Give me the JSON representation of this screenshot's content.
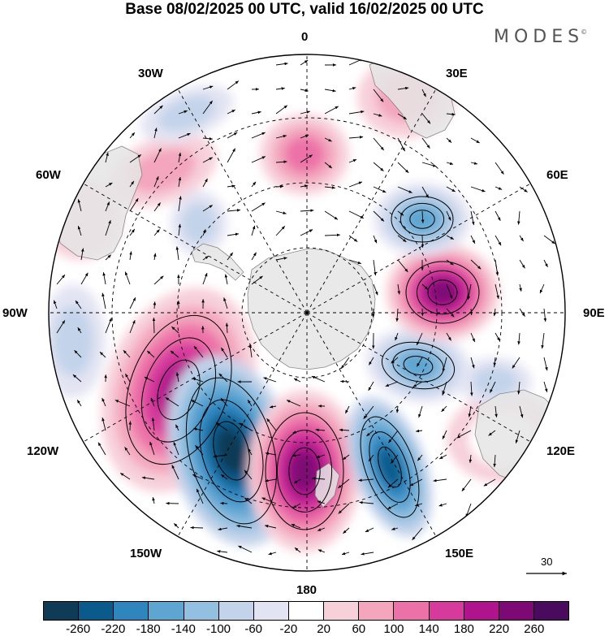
{
  "header": {
    "title": "Base 08/02/2025 00 UTC, valid 16/02/2025 00 UTC",
    "brand": "MODES",
    "brand_mark": "©"
  },
  "map": {
    "projection": "south polar stereographic",
    "longitude_labels": [
      "0",
      "30E",
      "60E",
      "90E",
      "120E",
      "150E",
      "180",
      "150W",
      "120W",
      "90W",
      "60W",
      "30W"
    ],
    "reference_vector": "30"
  },
  "colorbar": {
    "ticks": [
      "-260",
      "-220",
      "-180",
      "-140",
      "-100",
      "-60",
      "-20",
      "20",
      "60",
      "100",
      "140",
      "180",
      "220",
      "260"
    ],
    "colors": [
      "#0f3b57",
      "#0a5b8c",
      "#2f86bf",
      "#5ea5d2",
      "#93bfe0",
      "#c3d3ea",
      "#e3e4f3",
      "#ffffff",
      "#f7d0da",
      "#f3a6bd",
      "#ec71a8",
      "#d63b9b",
      "#b0148c",
      "#7d0a74",
      "#4a0a5e"
    ]
  }
}
